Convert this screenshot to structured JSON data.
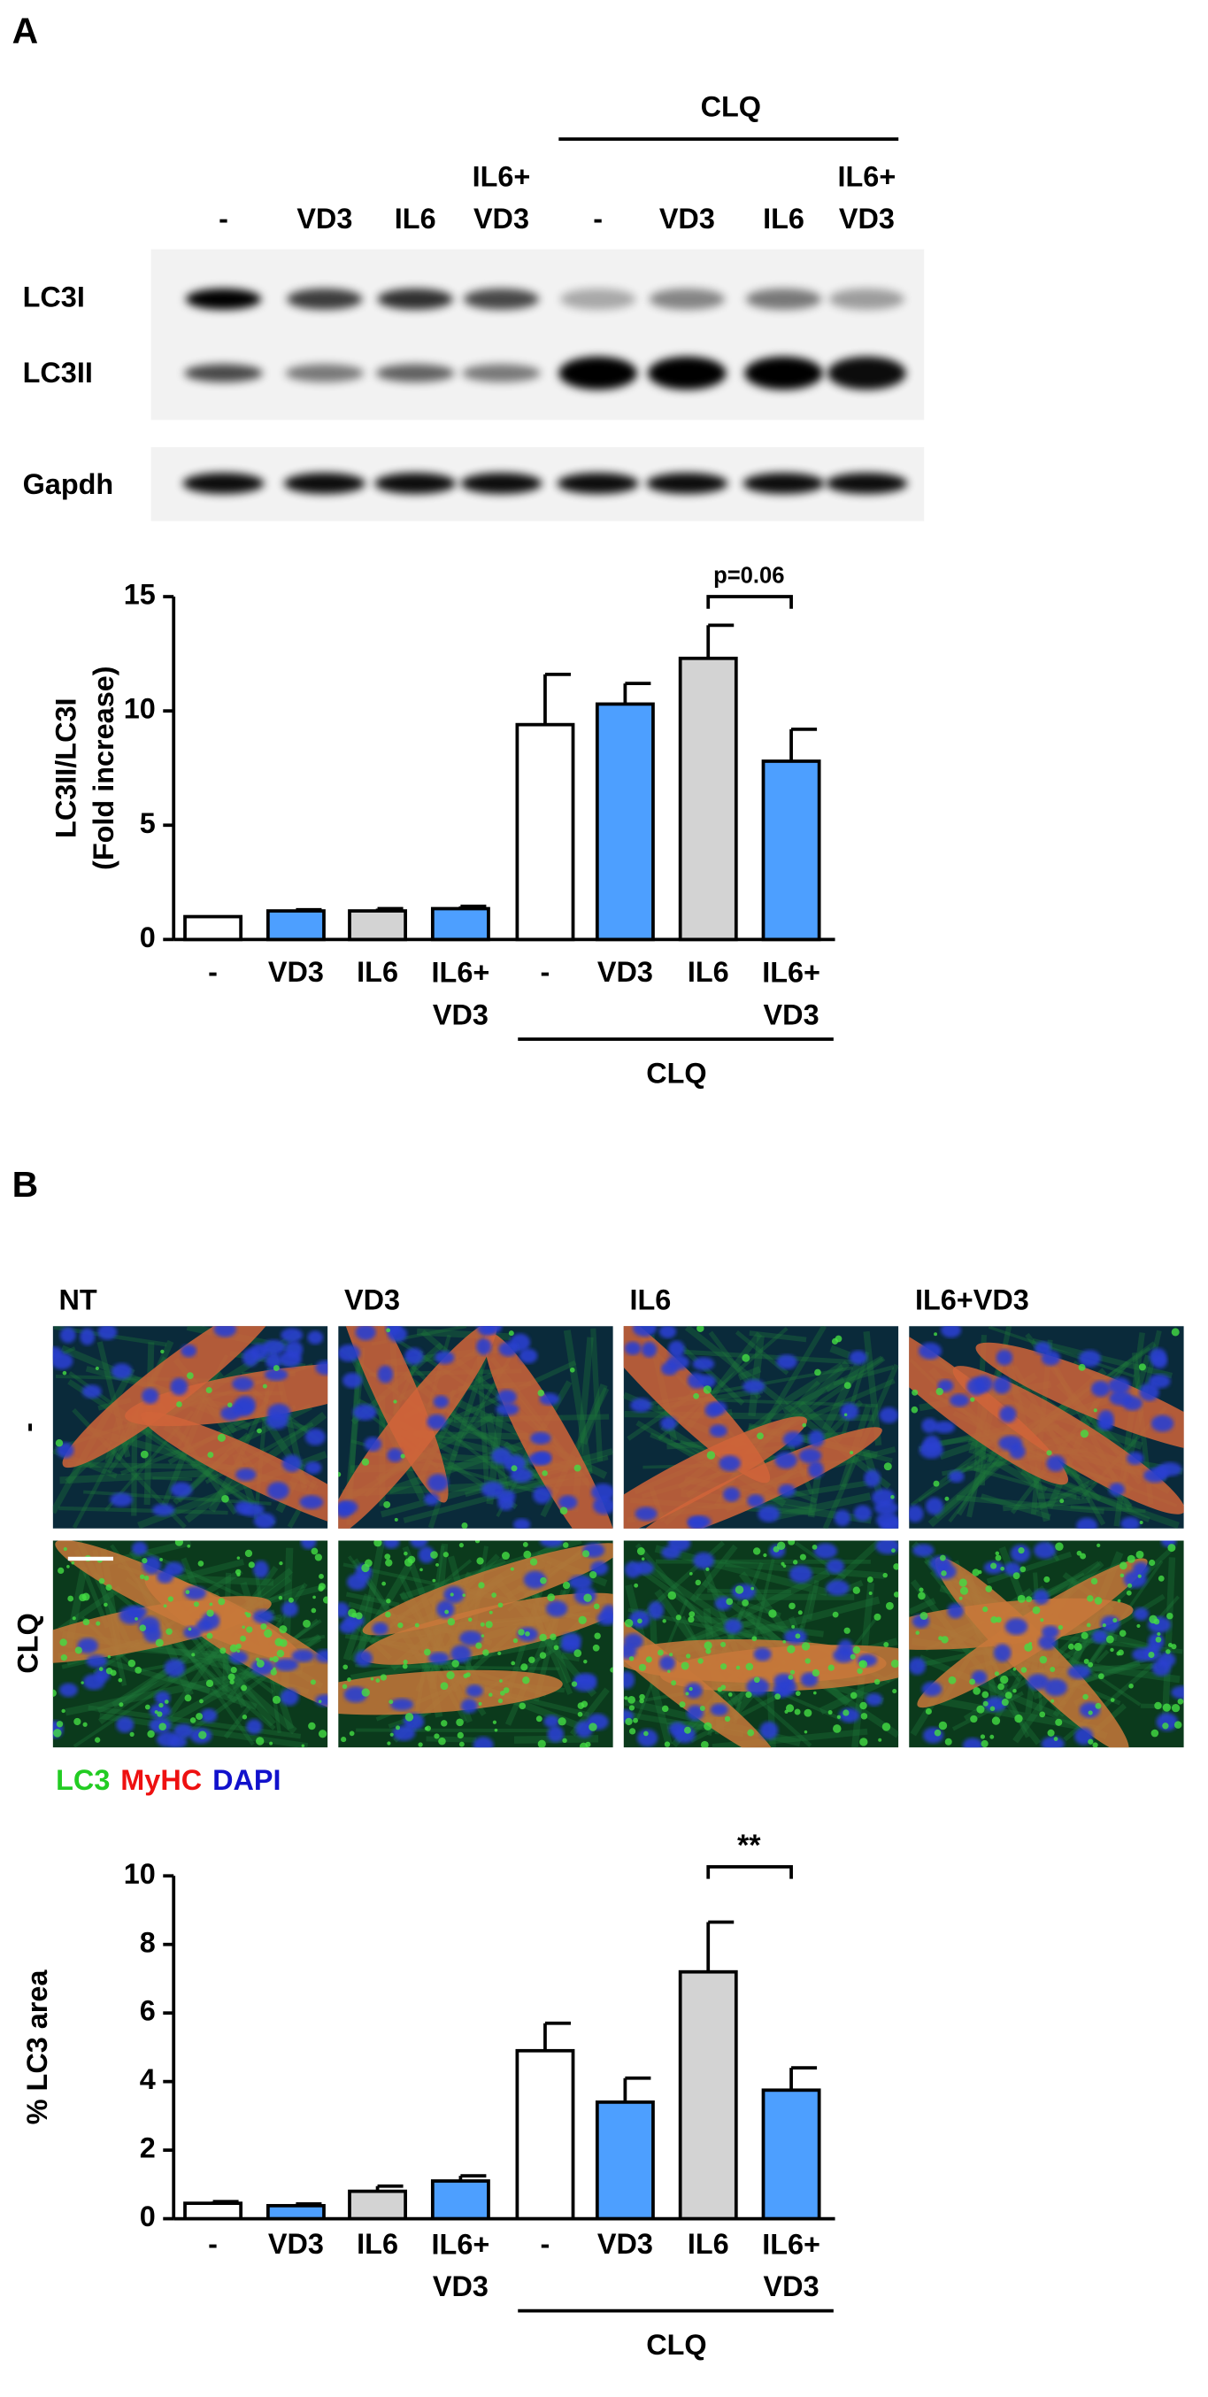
{
  "panel_a": {
    "label": "A",
    "blot": {
      "lanes": [
        "-",
        "VD3",
        "IL6",
        "IL6+\nVD3",
        "-",
        "VD3",
        "IL6",
        "IL6+\nVD3"
      ],
      "group": "CLQ",
      "rows": [
        "LC3I",
        "LC3II",
        "Gapdh"
      ]
    }
  },
  "panel_b": {
    "label": "B",
    "columns": [
      "NT",
      "VD3",
      "IL6",
      "IL6+VD3"
    ],
    "rows": [
      "-",
      "CLQ"
    ],
    "legend": [
      {
        "name": "LC3",
        "color": "#22cc22"
      },
      {
        "name": "MyHC",
        "color": "#ee1111"
      },
      {
        "name": "DAPI",
        "color": "#1111cc"
      }
    ]
  },
  "chart_data": [
    {
      "type": "bar",
      "ylabel": [
        "LC3II/LC3I",
        "(Fold increase)"
      ],
      "categories": [
        "-",
        "VD3",
        "IL6",
        "IL6+\nVD3",
        "-",
        "VD3",
        "IL6",
        "IL6+\nVD3"
      ],
      "values": [
        1.0,
        1.25,
        1.25,
        1.35,
        9.4,
        10.3,
        12.3,
        7.8
      ],
      "errors": [
        0,
        0.05,
        0.1,
        0.1,
        2.2,
        0.9,
        1.45,
        1.4
      ],
      "colors": [
        "#ffffff",
        "#4d9fff",
        "#d3d3d3",
        "#4d9fff",
        "#ffffff",
        "#4d9fff",
        "#d3d3d3",
        "#4d9fff"
      ],
      "group": "CLQ",
      "annotation": "p=0.06",
      "ylim": [
        0,
        15
      ],
      "yticks": [
        0,
        5,
        10,
        15
      ]
    },
    {
      "type": "bar",
      "ylabel": [
        "% LC3 area"
      ],
      "categories": [
        "-",
        "VD3",
        "IL6",
        "IL6+\nVD3",
        "-",
        "VD3",
        "IL6",
        "IL6+\nVD3"
      ],
      "values": [
        0.45,
        0.38,
        0.8,
        1.1,
        4.9,
        3.4,
        7.2,
        3.75
      ],
      "errors": [
        0.05,
        0.05,
        0.15,
        0.15,
        0.8,
        0.7,
        1.45,
        0.65
      ],
      "colors": [
        "#ffffff",
        "#4d9fff",
        "#d3d3d3",
        "#4d9fff",
        "#ffffff",
        "#4d9fff",
        "#d3d3d3",
        "#4d9fff"
      ],
      "group": "CLQ",
      "annotation": "**",
      "ylim": [
        0,
        10
      ],
      "yticks": [
        0,
        2,
        4,
        6,
        8,
        10
      ]
    }
  ]
}
